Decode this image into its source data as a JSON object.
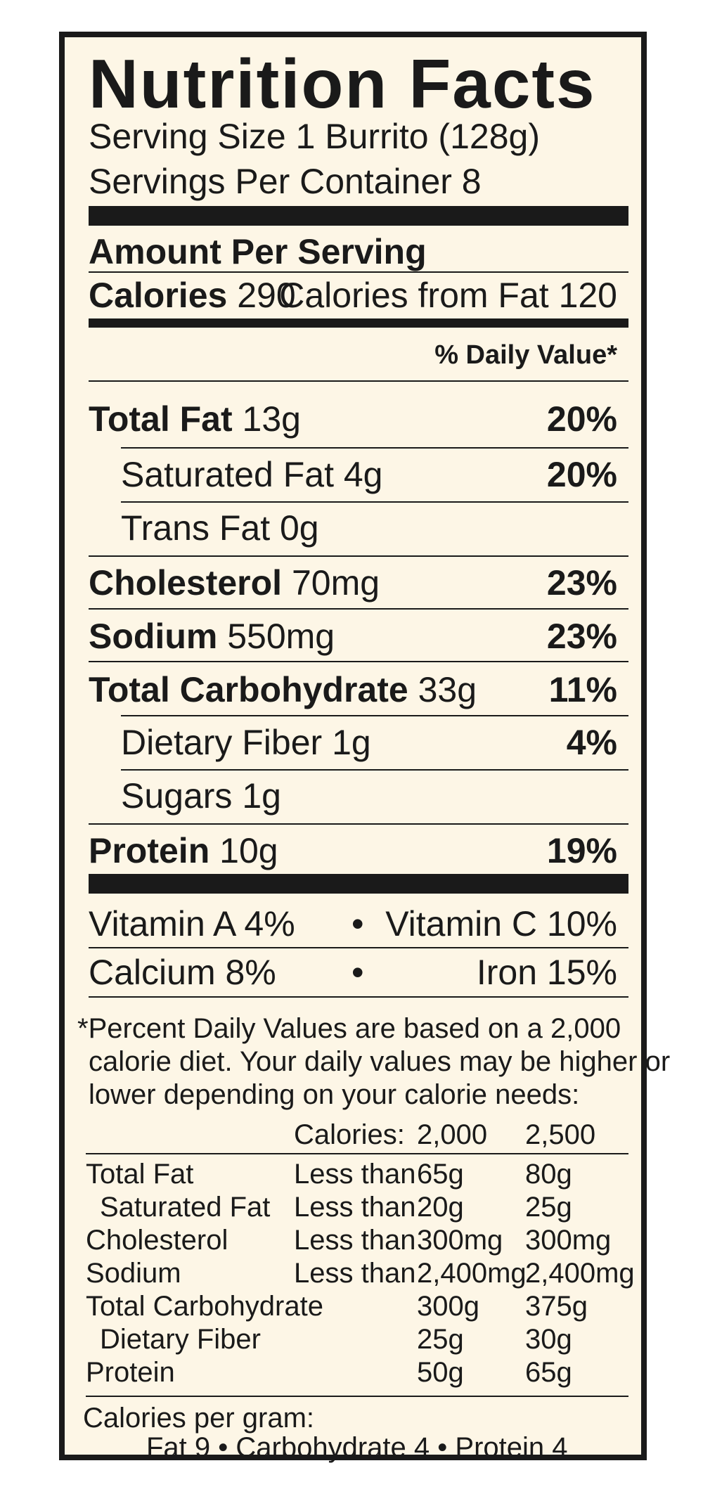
{
  "title": "Nutrition Facts",
  "serving_size": "Serving Size 1 Burrito (128g)",
  "servings_per_container": "Servings Per Container 8",
  "amount_per_serving": "Amount Per Serving",
  "calories_label": "Calories",
  "calories_value": "290",
  "calories_from_fat": "Calories from Fat 120",
  "daily_value_header": "% Daily Value*",
  "nutrients": [
    {
      "label": "Total Fat",
      "amount": "13g",
      "dv": "20%"
    },
    {
      "label": "Saturated Fat",
      "amount": "4g",
      "dv": "20%"
    },
    {
      "label": "Trans Fat",
      "amount": "0g",
      "dv": ""
    },
    {
      "label": "Cholesterol",
      "amount": "70mg",
      "dv": "23%"
    },
    {
      "label": "Sodium",
      "amount": "550mg",
      "dv": "23%"
    },
    {
      "label": "Total Carbohydrate",
      "amount": "33g",
      "dv": "11%"
    },
    {
      "label": "Dietary Fiber",
      "amount": "1g",
      "dv": "4%"
    },
    {
      "label": "Sugars",
      "amount": "1g",
      "dv": ""
    },
    {
      "label": "Protein",
      "amount": "10g",
      "dv": "19%"
    }
  ],
  "vitamins": {
    "vitamin_a": "Vitamin A 4%",
    "vitamin_c": "Vitamin C 10%",
    "calcium": "Calcium 8%",
    "iron": "Iron 15%",
    "bullet": "•"
  },
  "footnote": [
    "*Percent Daily Values are based on a 2,000",
    "calorie diet. Your daily values may be higher or",
    "lower depending on your calorie needs:"
  ],
  "dv_table": {
    "header": [
      "Calories:",
      "2,000",
      "2,500"
    ],
    "rows": [
      [
        "Total Fat",
        "Less than",
        "65g",
        "80g"
      ],
      [
        "Saturated Fat",
        "Less than",
        "20g",
        "25g"
      ],
      [
        "Cholesterol",
        "Less than",
        "300mg",
        "300mg"
      ],
      [
        "Sodium",
        "Less than",
        "2,400mg",
        "2,400mg"
      ],
      [
        "Total Carbohydrate",
        "",
        "300g",
        "375g"
      ],
      [
        "Dietary Fiber",
        "",
        "25g",
        "30g"
      ],
      [
        "Protein",
        "",
        "50g",
        "65g"
      ]
    ]
  },
  "calories_per_gram": {
    "label": "Calories per gram:",
    "fat": "Fat 9",
    "carbohydrate": "Carbohydrate 4",
    "protein": "Protein 4",
    "bullet": "•"
  },
  "colors": {
    "background": "#fdf6e6",
    "ink": "#1a1a1a"
  }
}
